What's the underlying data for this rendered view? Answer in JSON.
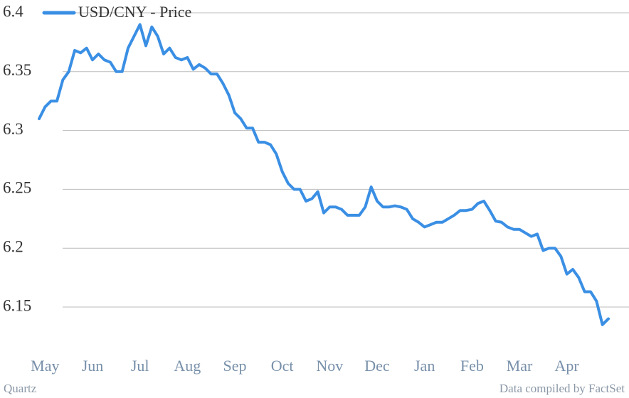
{
  "chart_data": {
    "type": "line",
    "categories": [
      null,
      "May",
      null,
      null,
      null,
      null,
      null,
      null,
      null,
      "Jun",
      null,
      null,
      null,
      null,
      null,
      null,
      null,
      "Jul",
      null,
      null,
      null,
      null,
      null,
      null,
      null,
      "Aug",
      null,
      null,
      null,
      null,
      null,
      null,
      null,
      "Sep",
      null,
      null,
      null,
      null,
      null,
      null,
      null,
      "Oct",
      null,
      null,
      null,
      null,
      null,
      null,
      null,
      "Nov",
      null,
      null,
      null,
      null,
      null,
      null,
      null,
      "Dec",
      null,
      null,
      null,
      null,
      null,
      null,
      null,
      "Jan",
      null,
      null,
      null,
      null,
      null,
      null,
      null,
      "Feb",
      null,
      null,
      null,
      null,
      null,
      null,
      null,
      "Mar",
      null,
      null,
      null,
      null,
      null,
      null,
      null,
      "Apr",
      null,
      null,
      null,
      null,
      null,
      null,
      null
    ],
    "series": [
      {
        "name": "USD/CNY - Price",
        "color": "#3a8fe4",
        "values": [
          6.31,
          6.32,
          6.325,
          6.325,
          6.343,
          6.35,
          6.368,
          6.366,
          6.37,
          6.36,
          6.365,
          6.36,
          6.358,
          6.35,
          6.35,
          6.37,
          6.38,
          6.39,
          6.372,
          6.388,
          6.38,
          6.365,
          6.37,
          6.362,
          6.36,
          6.362,
          6.352,
          6.356,
          6.353,
          6.348,
          6.348,
          6.34,
          6.33,
          6.315,
          6.31,
          6.302,
          6.302,
          6.29,
          6.29,
          6.288,
          6.28,
          6.265,
          6.255,
          6.25,
          6.25,
          6.24,
          6.242,
          6.248,
          6.23,
          6.235,
          6.235,
          6.233,
          6.228,
          6.228,
          6.228,
          6.235,
          6.252,
          6.24,
          6.235,
          6.235,
          6.236,
          6.235,
          6.233,
          6.225,
          6.222,
          6.218,
          6.22,
          6.222,
          6.222,
          6.225,
          6.228,
          6.232,
          6.232,
          6.233,
          6.238,
          6.24,
          6.232,
          6.223,
          6.222,
          6.218,
          6.216,
          6.216,
          6.213,
          6.21,
          6.212,
          6.198,
          6.2,
          6.2,
          6.193,
          6.178,
          6.182,
          6.175,
          6.163,
          6.163,
          6.155,
          6.135,
          6.14
        ]
      }
    ],
    "ylim": [
      6.125,
      6.4
    ],
    "yticks": [
      6.15,
      6.2,
      6.25,
      6.3,
      6.35,
      6.4
    ],
    "grid": true,
    "source": "Data compiled by FactSet",
    "credit": "Quartz"
  }
}
